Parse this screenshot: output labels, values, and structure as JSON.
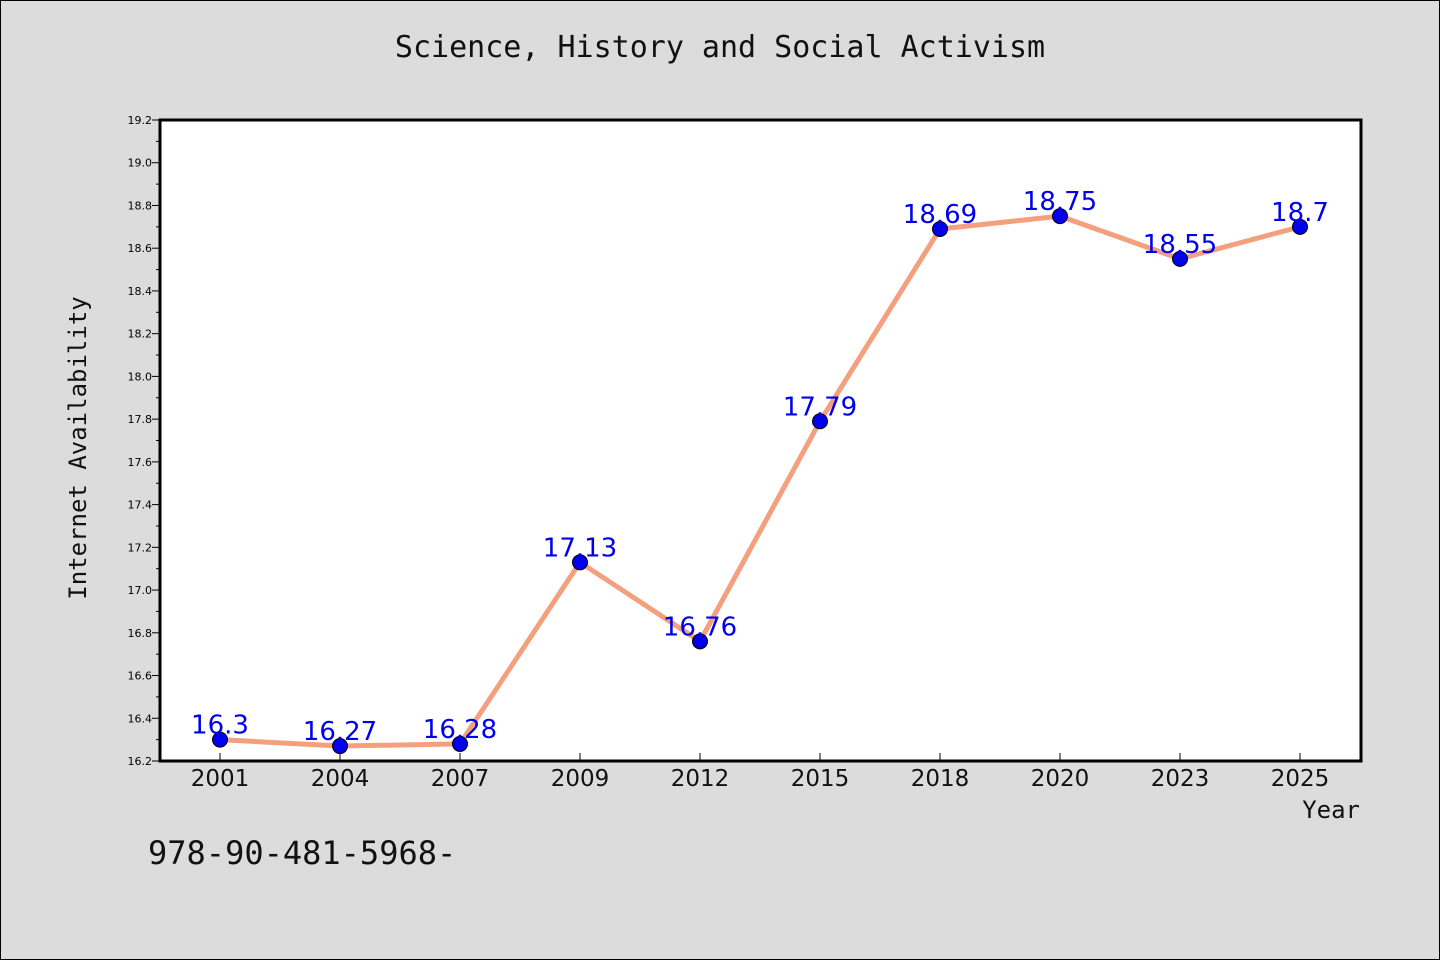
{
  "chart_data": {
    "type": "line",
    "title": "Science, History and Social Activism",
    "xlabel": "Year",
    "ylabel": "Internet Availability",
    "categories": [
      "2001",
      "2004",
      "2007",
      "2009",
      "2012",
      "2015",
      "2018",
      "2020",
      "2023",
      "2025"
    ],
    "series": [
      {
        "values": [
          16.3,
          16.27,
          16.28,
          17.13,
          16.76,
          17.79,
          18.69,
          18.75,
          18.55,
          18.7
        ],
        "labels": [
          "16.3",
          "16.27",
          "16.28",
          "17.13",
          "16.76",
          "17.79",
          "18.69",
          "18.75",
          "18.55",
          "18.7"
        ],
        "line_color": "#f4a07e",
        "marker_color": "#0000ee"
      }
    ],
    "ylim": [
      16.2,
      19.2
    ],
    "yticks": [
      "16.2",
      "16.4",
      "16.6",
      "16.8",
      "17.0",
      "17.2",
      "17.4",
      "17.6",
      "17.8",
      "18.0",
      "18.2",
      "18.4",
      "18.6",
      "18.8",
      "19.0",
      "19.2"
    ],
    "grid": false,
    "label_color": "#0000ee"
  },
  "footnote": "978-90-481-5968-"
}
